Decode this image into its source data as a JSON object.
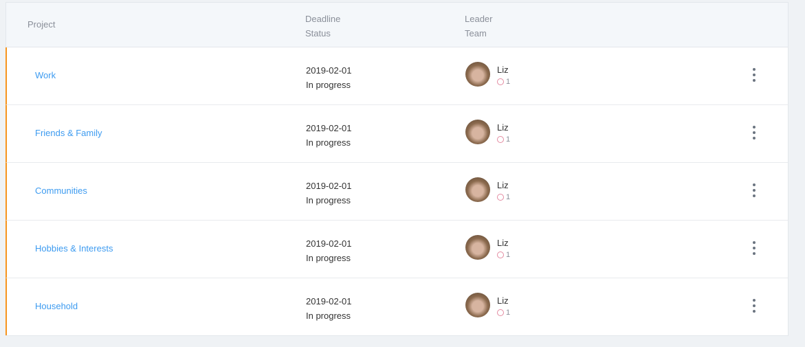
{
  "header": {
    "project": "Project",
    "deadline": "Deadline",
    "status": "Status",
    "leader": "Leader",
    "team": "Team"
  },
  "rows": [
    {
      "project": "Work",
      "deadline": "2019-02-01",
      "status": "In progress",
      "leader": "Liz",
      "team": "1"
    },
    {
      "project": "Friends & Family",
      "deadline": "2019-02-01",
      "status": "In progress",
      "leader": "Liz",
      "team": "1"
    },
    {
      "project": "Communities",
      "deadline": "2019-02-01",
      "status": "In progress",
      "leader": "Liz",
      "team": "1"
    },
    {
      "project": "Hobbies & Interests",
      "deadline": "2019-02-01",
      "status": "In progress",
      "leader": "Liz",
      "team": "1"
    },
    {
      "project": "Household",
      "deadline": "2019-02-01",
      "status": "In progress",
      "leader": "Liz",
      "team": "1"
    }
  ],
  "colors": {
    "accent": "#f7941d",
    "link": "#3d9bf0"
  }
}
